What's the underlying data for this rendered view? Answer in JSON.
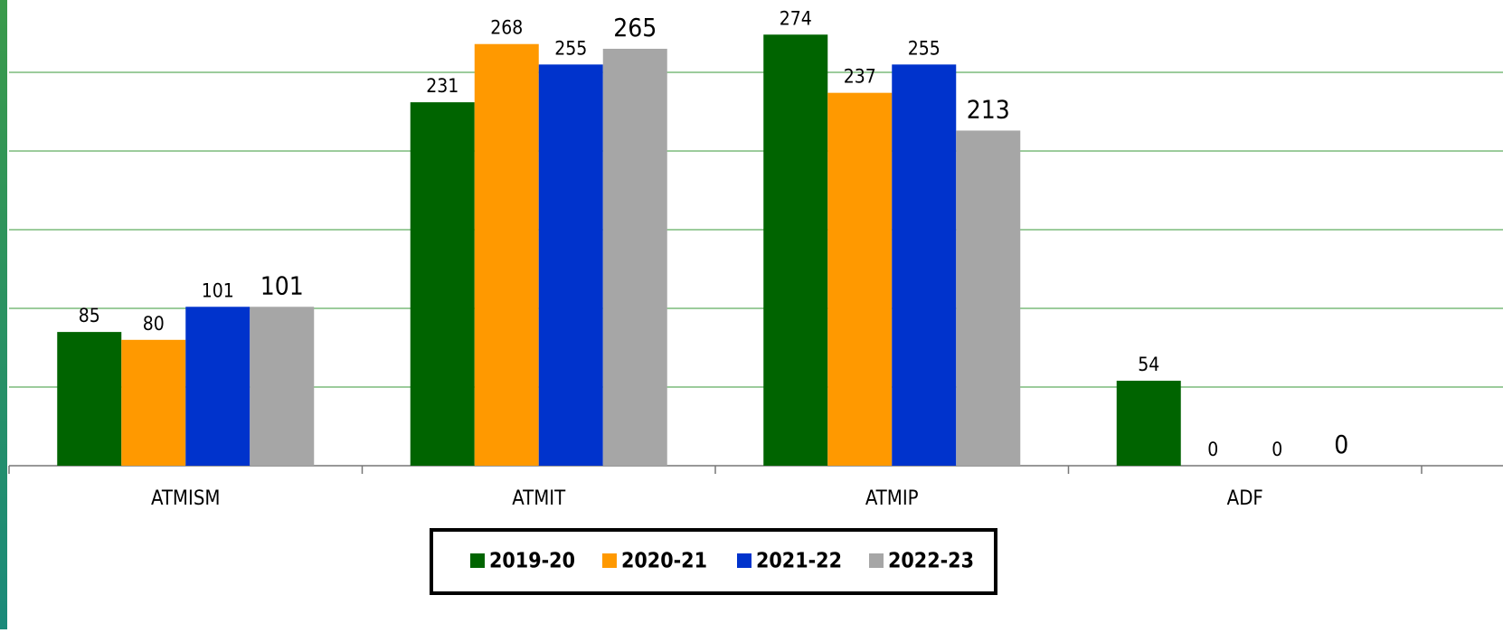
{
  "chart_data": {
    "type": "bar",
    "categories": [
      "ATMISM",
      "ATMIT",
      "ATMIP",
      "ADF"
    ],
    "series": [
      {
        "name": "2019-20",
        "color": "#006400",
        "values": [
          85,
          231,
          274,
          54
        ]
      },
      {
        "name": "2020-21",
        "color": "#ff9900",
        "values": [
          80,
          268,
          237,
          0
        ]
      },
      {
        "name": "2021-22",
        "color": "#0033cc",
        "values": [
          101,
          255,
          255,
          0
        ]
      },
      {
        "name": "2022-23",
        "color": "#a6a6a6",
        "values": [
          101,
          265,
          213,
          0
        ]
      }
    ],
    "ylim": [
      0,
      296
    ],
    "yticks": [
      0,
      50,
      100,
      150,
      200,
      250
    ],
    "grid": true,
    "legend": "bottom"
  }
}
